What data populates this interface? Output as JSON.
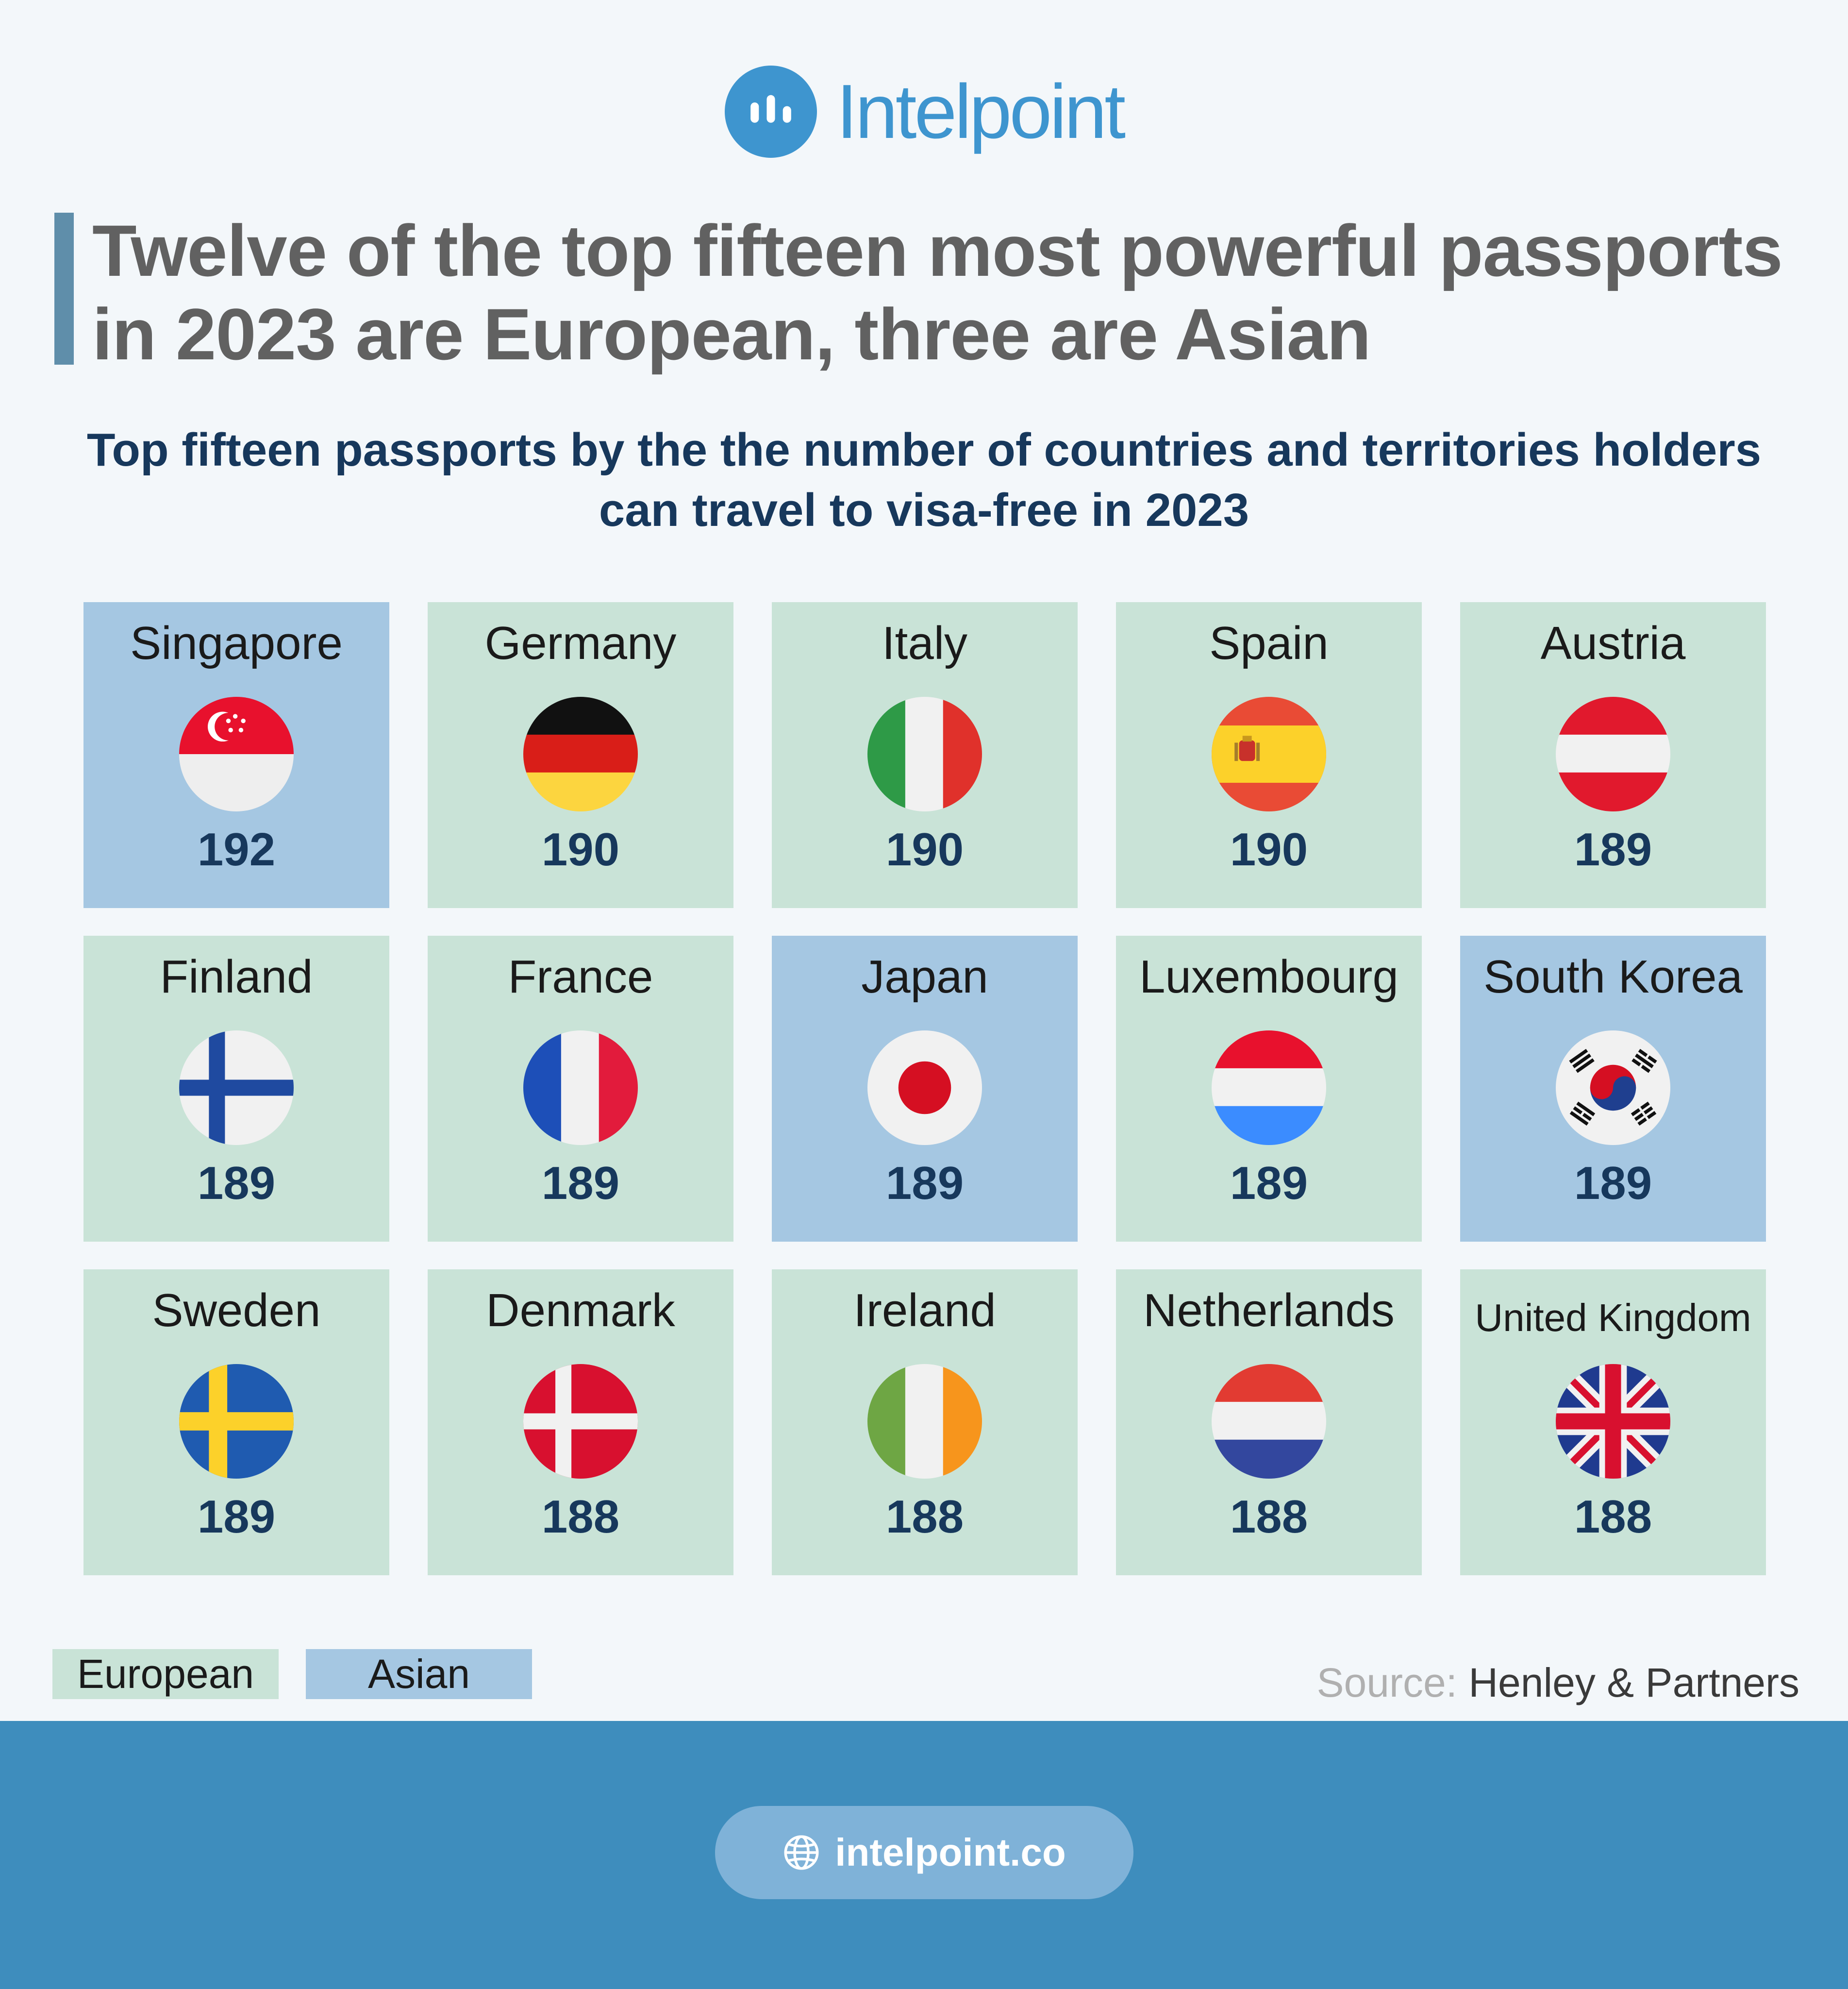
{
  "brand": {
    "name": "Intelpoint",
    "color": "#3e95cf"
  },
  "title": "Twelve of the top fifteen most powerful passports in 2023 are European, three are Asian",
  "subtitle": "Top fifteen passports by the the number of countries and territories holders can travel to visa-free in 2023",
  "colors": {
    "european": "#c9e3d7",
    "asian": "#a5c7e2",
    "value_text": "#17385c",
    "footer": "#3e8dbd"
  },
  "passports": [
    {
      "country": "Singapore",
      "value": "192",
      "region": "asian",
      "flag": "singapore-flag-icon"
    },
    {
      "country": "Germany",
      "value": "190",
      "region": "european",
      "flag": "germany-flag-icon"
    },
    {
      "country": "Italy",
      "value": "190",
      "region": "european",
      "flag": "italy-flag-icon"
    },
    {
      "country": "Spain",
      "value": "190",
      "region": "european",
      "flag": "spain-flag-icon"
    },
    {
      "country": "Austria",
      "value": "189",
      "region": "european",
      "flag": "austria-flag-icon"
    },
    {
      "country": "Finland",
      "value": "189",
      "region": "european",
      "flag": "finland-flag-icon"
    },
    {
      "country": "France",
      "value": "189",
      "region": "european",
      "flag": "france-flag-icon"
    },
    {
      "country": "Japan",
      "value": "189",
      "region": "asian",
      "flag": "japan-flag-icon"
    },
    {
      "country": "Luxembourg",
      "value": "189",
      "region": "european",
      "flag": "luxembourg-flag-icon"
    },
    {
      "country": "South Korea",
      "value": "189",
      "region": "asian",
      "flag": "south-korea-flag-icon"
    },
    {
      "country": "Sweden",
      "value": "189",
      "region": "european",
      "flag": "sweden-flag-icon"
    },
    {
      "country": "Denmark",
      "value": "188",
      "region": "european",
      "flag": "denmark-flag-icon"
    },
    {
      "country": "Ireland",
      "value": "188",
      "region": "european",
      "flag": "ireland-flag-icon"
    },
    {
      "country": "Netherlands",
      "value": "188",
      "region": "european",
      "flag": "netherlands-flag-icon"
    },
    {
      "country": "United Kingdom",
      "value": "188",
      "region": "european",
      "flag": "united-kingdom-flag-icon"
    }
  ],
  "legend": {
    "european": "European",
    "asian": "Asian"
  },
  "source": {
    "label": "Source:",
    "value": "Henley & Partners"
  },
  "footer": {
    "url": "intelpoint.co",
    "icon": "globe-icon"
  }
}
